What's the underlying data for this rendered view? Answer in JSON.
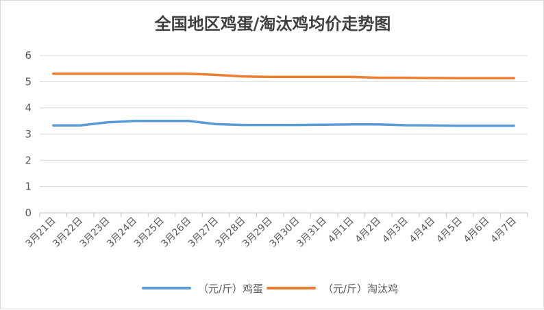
{
  "chart_data": {
    "type": "line",
    "title": "全国地区鸡蛋/淘汰鸡均价走势图",
    "categories": [
      "3月21日",
      "3月22日",
      "3月23日",
      "3月24日",
      "3月25日",
      "3月26日",
      "3月27日",
      "3月28日",
      "3月29日",
      "3月30日",
      "3月31日",
      "4月1日",
      "4月2日",
      "4月3日",
      "4月4日",
      "4月5日",
      "4月6日",
      "4月7日"
    ],
    "series": [
      {
        "name": "（元/斤）鸡蛋",
        "color": "#5b9bd5",
        "values": [
          3.33,
          3.33,
          3.45,
          3.5,
          3.5,
          3.5,
          3.38,
          3.35,
          3.35,
          3.35,
          3.36,
          3.37,
          3.37,
          3.34,
          3.33,
          3.32,
          3.32,
          3.32
        ]
      },
      {
        "name": "（元/斤）淘汰鸡",
        "color": "#ed7d31",
        "values": [
          5.3,
          5.3,
          5.3,
          5.3,
          5.3,
          5.3,
          5.26,
          5.2,
          5.18,
          5.18,
          5.18,
          5.18,
          5.15,
          5.15,
          5.14,
          5.13,
          5.13,
          5.13
        ]
      }
    ],
    "yticks": [
      0,
      1,
      2,
      3,
      4,
      5,
      6
    ],
    "ylim": [
      0,
      6
    ],
    "xlabel": "",
    "ylabel": "",
    "grid": true,
    "legend_position": "bottom"
  }
}
